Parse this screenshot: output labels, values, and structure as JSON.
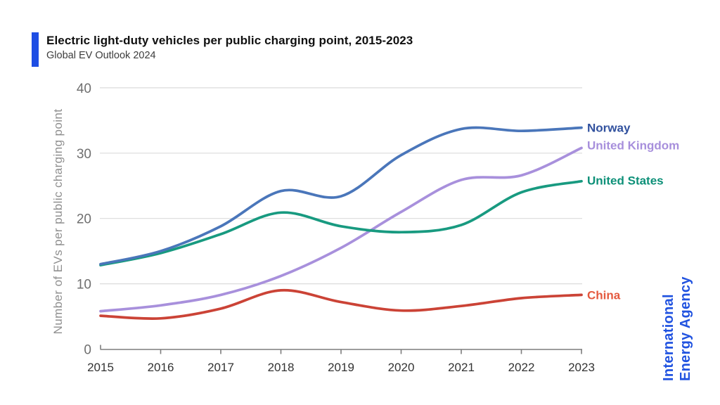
{
  "branding": {
    "line1": "International",
    "line2": "Energy Agency",
    "color": "#2153e0"
  },
  "chart_data": {
    "type": "line",
    "title": "Electric light-duty vehicles per public charging point, 2015-2023",
    "subtitle": "Global EV Outlook 2024",
    "xlabel": "",
    "ylabel": "Number of EVs per public charging point",
    "x": [
      2015,
      2016,
      2017,
      2018,
      2019,
      2020,
      2021,
      2022,
      2023
    ],
    "yticks": [
      0,
      10,
      20,
      30,
      40
    ],
    "ylim": [
      0,
      40
    ],
    "grid": true,
    "legend_position": "right-end-labels",
    "colors": {
      "grid": "#dcdcdc",
      "axis": "#7d7d7d",
      "x_tick_label": "#333333",
      "y_tick_label": "#6f6f6f",
      "y_axis_title": "#8f8f8f"
    },
    "series": [
      {
        "name": "United Kingdom",
        "color": "#a890dc",
        "label_color": "#a78fdc",
        "values": [
          5.8,
          6.7,
          8.3,
          11.2,
          15.5,
          21.0,
          25.9,
          26.6,
          30.8
        ]
      },
      {
        "name": "China",
        "color": "#cb4336",
        "label_color": "#e4593e",
        "values": [
          5.1,
          4.7,
          6.2,
          9.0,
          7.2,
          5.9,
          6.6,
          7.8,
          8.3
        ]
      },
      {
        "name": "United States",
        "color": "#189a80",
        "label_color": "#0d9078",
        "values": [
          12.85,
          14.7,
          17.6,
          20.9,
          18.8,
          17.9,
          19.0,
          24.0,
          25.7
        ]
      },
      {
        "name": "Norway",
        "color": "#4a76ba",
        "label_color": "#31519e",
        "values": [
          13.0,
          15.0,
          18.8,
          24.2,
          23.4,
          29.7,
          33.7,
          33.4,
          33.9
        ]
      }
    ]
  }
}
